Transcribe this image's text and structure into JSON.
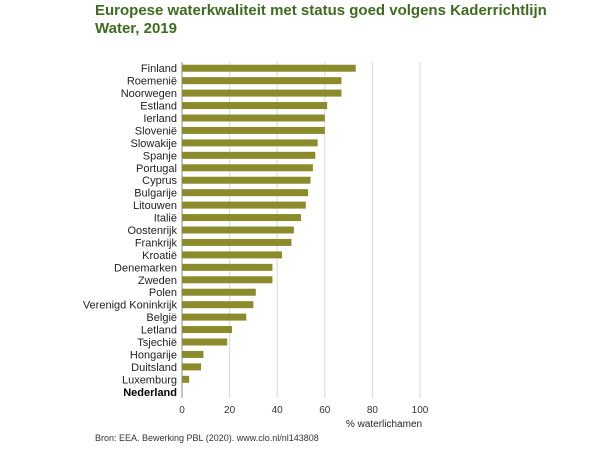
{
  "title": "Europese waterkwaliteit met status goed volgens Kaderrichtlijn Water, 2019",
  "source": "Bron: EEA. Bewerking PBL (2020). www.clo.nl/nl143808",
  "colors": {
    "bar": "#8b8b2c",
    "title": "#3f6b1f",
    "grid": "#d9d9d9"
  },
  "chart_data": {
    "type": "bar",
    "orientation": "horizontal",
    "title": "Europese waterkwaliteit met status goed volgens Kaderrichtlijn Water, 2019",
    "xlabel": "% waterlichamen",
    "ylabel": "",
    "xlim": [
      0,
      100
    ],
    "xticks": [
      0,
      20,
      40,
      60,
      80,
      100
    ],
    "grid": true,
    "highlight_category": "Nederland",
    "categories": [
      "Finland",
      "Roemenië",
      "Noorwegen",
      "Estland",
      "Ierland",
      "Slovenië",
      "Slowakije",
      "Spanje",
      "Portugal",
      "Cyprus",
      "Bulgarije",
      "Litouwen",
      "Italië",
      "Oostenrijk",
      "Frankrijk",
      "Kroatië",
      "Denemarken",
      "Zweden",
      "Polen",
      "Verenigd Koninkrijk",
      "België",
      "Letland",
      "Tsjechië",
      "Hongarije",
      "Duitsland",
      "Luxemburg",
      "Nederland"
    ],
    "values": [
      73,
      67,
      67,
      61,
      60,
      60,
      57,
      56,
      55,
      54,
      53,
      52,
      50,
      47,
      46,
      42,
      38,
      38,
      31,
      30,
      27,
      21,
      19,
      9,
      8,
      3,
      0
    ]
  }
}
